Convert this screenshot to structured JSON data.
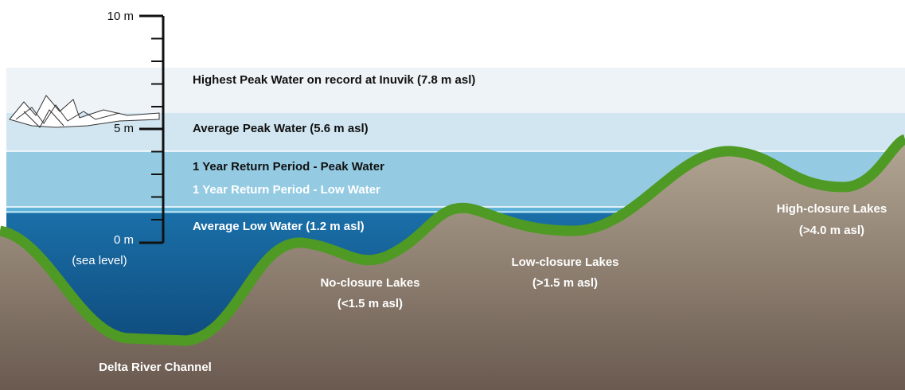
{
  "scale": {
    "top": "10 m",
    "middle": "5 m",
    "bottom": "0 m",
    "bottom_note": "(sea level)"
  },
  "bands": [
    "Highest Peak Water on record at Inuvik (7.8 m asl)",
    "Average Peak Water (5.6 m asl)",
    "1 Year Return Period - Peak Water",
    "1 Year Return Period - Low Water",
    "Average Low Water (1.2 m asl)"
  ],
  "terrain": {
    "channel": "Delta River Channel",
    "no_closure": {
      "name": "No-closure Lakes",
      "level": "(<1.5 m asl)"
    },
    "low_closure": {
      "name": "Low-closure Lakes",
      "level": "(>1.5 m asl)"
    },
    "high_closure": {
      "name": "High-closure Lakes",
      "level": "(>4.0 m asl)"
    }
  }
}
